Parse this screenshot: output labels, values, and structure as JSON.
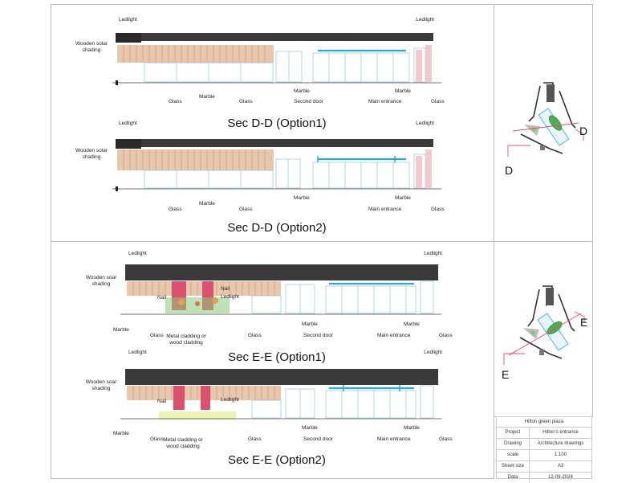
{
  "sections": {
    "dd1": {
      "title": "Sec D-D (Option1)",
      "labels": {
        "ledlight_left": "Ledlight",
        "ledlight_right": "Ledlight",
        "wooden_solar_shading": "Wooden solar\nshading",
        "glass_1": "Glass",
        "marble_1": "Marble",
        "glass_2": "Glass",
        "marble_2": "Marble",
        "second_door": "Second door",
        "main_entrance": "Main entrance",
        "marble_3": "Marble",
        "glass_3": "Glass"
      }
    },
    "dd2": {
      "title": "Sec D-D (Option2)",
      "labels": {
        "ledlight_left": "Ledlight",
        "ledlight_right": "Ledlight",
        "wooden_solar_shading": "Wooden solar\nshading",
        "glass_1": "Glass",
        "marble_1": "Marble",
        "glass_2": "Glass",
        "marble_2": "Marble",
        "main_entrance": "Main entrance",
        "marble_3": "Marble",
        "glass_3": "Glass"
      }
    },
    "ee1": {
      "title": "Sec E-E (Option1)",
      "labels": {
        "ledlight_left": "Ledlight",
        "ledlight_right": "Ledlight",
        "wooden_soar_shading": "Wooden soar\nshading",
        "nail_1": "Nail",
        "nail_2": "Nail",
        "ledlight_mid": "Ledlight",
        "marble_1": "Marble",
        "glass_1": "Glass",
        "metal_cladding": "Metal cladding or\nwood cladding",
        "glass_2": "Glass",
        "marble_2": "Marble",
        "second_door": "Second door",
        "main_entrance": "Main entrance",
        "marble_3": "Marble",
        "glass_3": "Glass"
      }
    },
    "ee2": {
      "title": "Sec E-E (Option2)",
      "labels": {
        "ledlight_left": "Ledlight",
        "ledlight_right": "Ledlight",
        "wooden_soar_shading": "Wooden soar\nshading",
        "nail_1": "Nail",
        "ledlight_mid": "Ledlight",
        "marble_1": "Marble",
        "glass_1": "Glass",
        "metal_cladding": "Metal cladding or\nwood cladding",
        "glass_2": "Glass",
        "marble_2": "Marble",
        "second_door": "Second door",
        "main_entrance": "Main entrance",
        "marble_3": "Marble",
        "glass_3": "Glass"
      }
    }
  },
  "keyplans": {
    "d": {
      "mark_top": "D",
      "mark_bottom": "D"
    },
    "e": {
      "mark_top": "E",
      "mark_bottom": "E"
    }
  },
  "title_block": {
    "project_name": "Hilton green plaza",
    "rows": [
      {
        "key": "Project",
        "value": "Hilton's entrance"
      },
      {
        "key": "Drawing",
        "value": "Architecture drawings"
      },
      {
        "key": "scale",
        "value": "1:100"
      },
      {
        "key": "Sheet size",
        "value": "A3"
      },
      {
        "key": "Data",
        "value": "12-09-2024"
      }
    ]
  },
  "colors": {
    "roof": "#3a3a3a",
    "wood": "#e9c7ad",
    "glass_blue": "#2aa7e0",
    "cladding_red": "#d9536e",
    "planting_green": "#8ac97a",
    "callout_red": "#e0507a"
  }
}
